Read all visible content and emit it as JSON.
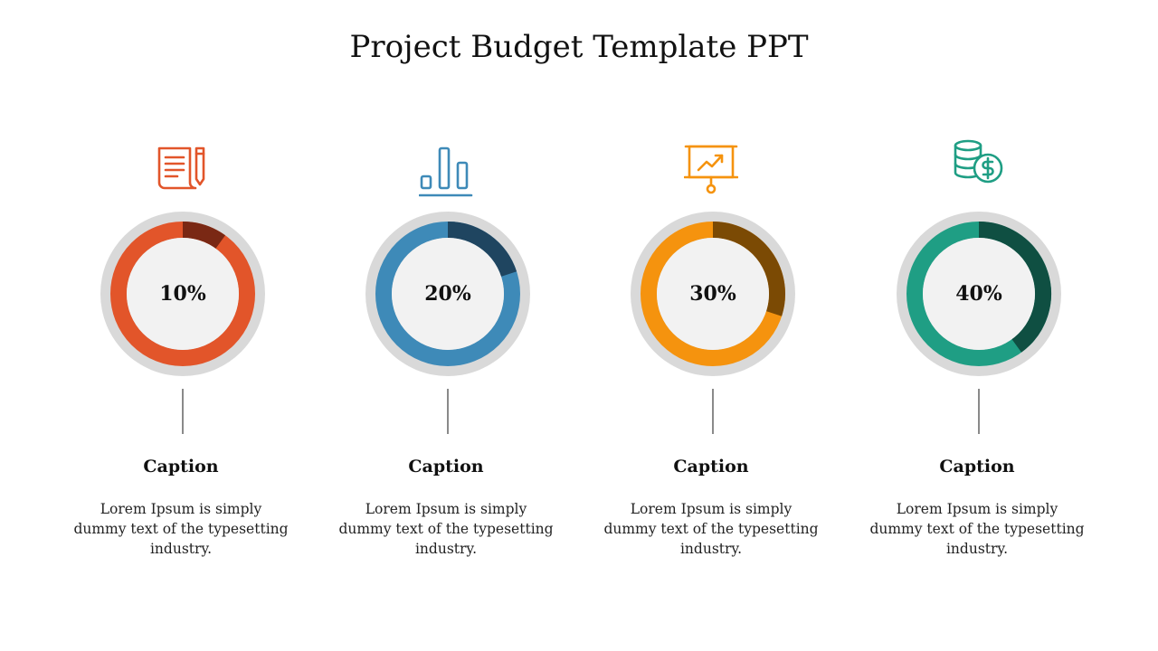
{
  "title": "Project Budget Template PPT",
  "items": [
    {
      "icon": "document-pencil-icon",
      "percent_label": "10%",
      "percent_value": 10,
      "caption": "Caption",
      "description_lines": [
        "Lorem Ipsum is simply",
        "dummy text of the typesetting",
        "industry."
      ],
      "color": "#E2552A",
      "dark_color": "#7A2814"
    },
    {
      "icon": "bar-chart-icon",
      "percent_label": "20%",
      "percent_value": 20,
      "caption": "Caption",
      "description_lines": [
        "Lorem Ipsum is simply",
        "dummy text of the typesetting",
        "industry."
      ],
      "color": "#3E8AB8",
      "dark_color": "#1F4560"
    },
    {
      "icon": "presentation-board-icon",
      "percent_label": "30%",
      "percent_value": 30,
      "caption": "Caption",
      "description_lines": [
        "Lorem Ipsum is simply",
        "dummy text of the typesetting",
        "industry."
      ],
      "color": "#F5930E",
      "dark_color": "#7B4A04"
    },
    {
      "icon": "coins-dollar-icon",
      "percent_label": "40%",
      "percent_value": 40,
      "caption": "Caption",
      "description_lines": [
        "Lorem Ipsum is simply",
        "dummy text of the typesetting",
        "industry."
      ],
      "color": "#1F9E84",
      "dark_color": "#0F4F42"
    }
  ]
}
